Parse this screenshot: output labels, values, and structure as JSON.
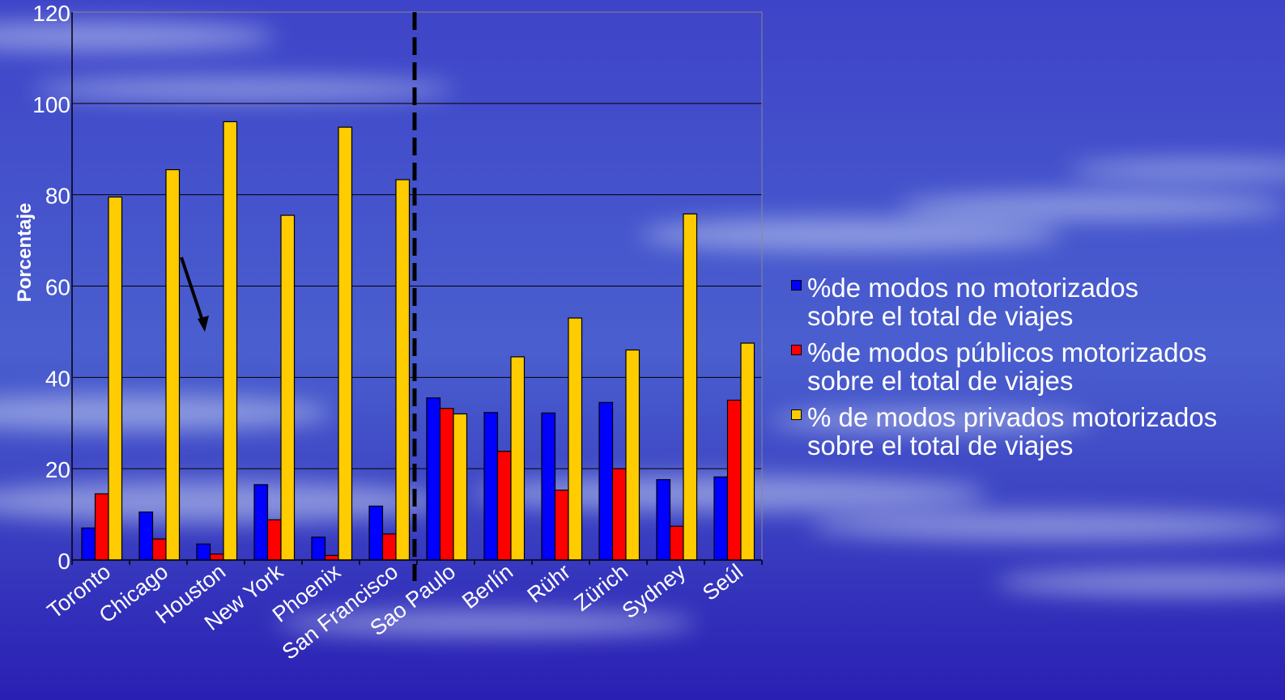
{
  "chart_data": {
    "type": "bar",
    "title": "",
    "xlabel": "",
    "ylabel": "Porcentaje",
    "ylim": [
      0,
      120
    ],
    "yticks": [
      "0",
      "20",
      "40",
      "60",
      "80",
      "100",
      "120"
    ],
    "grid": true,
    "legend_position": "right",
    "categories": [
      "Toronto",
      "Chicago",
      "Houston",
      "New York",
      "Phoenix",
      "San Francisco",
      "Sao Paulo",
      "Berlín",
      "Rühr",
      "Zürich",
      "Sydney",
      "Seúl"
    ],
    "series": [
      {
        "name": "%de modos no motorizados sobre el total de viajes",
        "line1": "%de modos no motorizados",
        "line2": "sobre el total de viajes",
        "color": "#0000ff",
        "values": [
          7,
          10.5,
          3.5,
          16.5,
          5,
          11.8,
          35.5,
          32.3,
          32.2,
          34.5,
          17.6,
          18.2
        ]
      },
      {
        "name": "%de modos públicos motorizados sobre el total de viajes",
        "line1": "%de modos públicos motorizados",
        "line2": "sobre el total de viajes",
        "color": "#ff0000",
        "values": [
          14.5,
          4.6,
          1.3,
          8.8,
          1,
          5.7,
          33.2,
          23.8,
          15.3,
          20,
          7.4,
          35
        ]
      },
      {
        "name": "% de modos privados motorizados sobre el total de viajes",
        "line1": "% de modos privados motorizados",
        "line2": "sobre el total de viajes",
        "color": "#ffcc00",
        "values": [
          79.5,
          85.5,
          96,
          75.5,
          94.8,
          83.3,
          32,
          44.5,
          53,
          46,
          75.8,
          47.5
        ]
      }
    ],
    "annotations": {
      "divider_after_category": "San Francisco",
      "divider_style": "dashed",
      "arrow_near_category": "Houston"
    }
  }
}
